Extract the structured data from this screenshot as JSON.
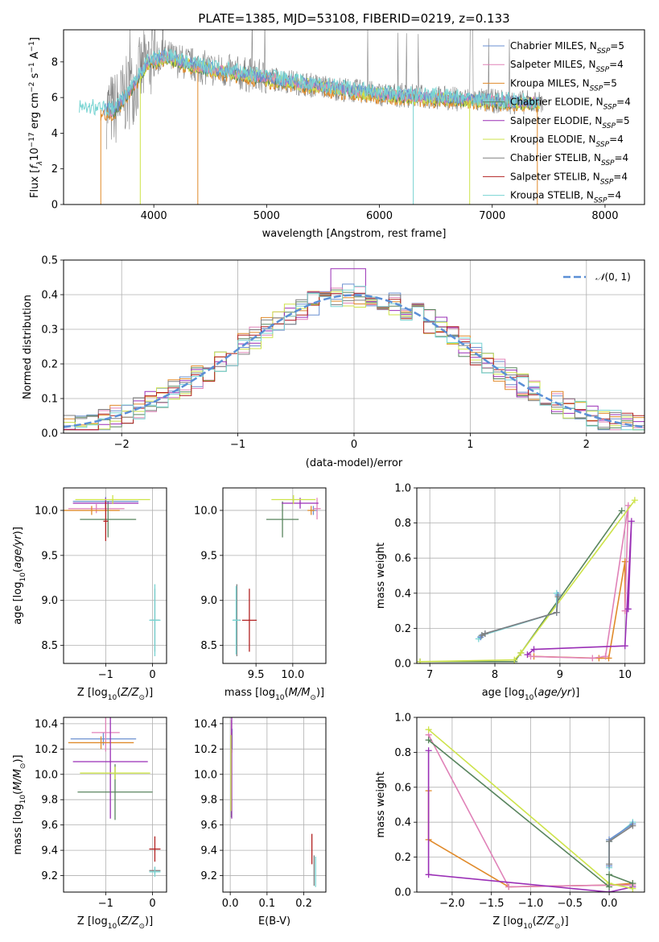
{
  "colors": {
    "chabrier_miles": "#6a8fd0",
    "salpeter_miles": "#e082b8",
    "kroupa_miles": "#e08a2a",
    "chabrier_elodie": "#59855e",
    "salpeter_elodie": "#9a2fb6",
    "kroupa_elodie": "#cde34a",
    "chabrier_stelib": "#808080",
    "salpeter_stelib": "#b22222",
    "kroupa_stelib": "#78d4d2"
  },
  "chart_data": [
    {
      "id": "spectrum",
      "type": "line",
      "title": "PLATE=1385, MJD=53108, FIBERID=0219, z=0.133",
      "xlabel": "wavelength [Angstrom, rest frame]",
      "ylabel": "Flux [f_λ10^-17 erg cm^-2 s^-1 A^-1]",
      "xlim": [
        3200,
        8350
      ],
      "ylim": [
        0,
        9.8
      ],
      "xticks": [
        4000,
        5000,
        6000,
        7000,
        8000
      ],
      "yticks": [
        0,
        2,
        4,
        6,
        8
      ],
      "legend_position": "top-right",
      "legend": [
        {
          "label": "Chabrier MILES, N_SSP=5",
          "color": "#6a8fd0"
        },
        {
          "label": "Salpeter MILES, N_SSP=4",
          "color": "#e082b8"
        },
        {
          "label": "Kroupa MILES, N_SSP=5",
          "color": "#e08a2a"
        },
        {
          "label": "Chabrier ELODIE, N_SSP=4",
          "color": "#59855e"
        },
        {
          "label": "Salpeter ELODIE, N_SSP=5",
          "color": "#9a2fb6"
        },
        {
          "label": "Kroupa ELODIE, N_SSP=4",
          "color": "#cde34a"
        },
        {
          "label": "Chabrier STELIB, N_SSP=4",
          "color": "#808080"
        },
        {
          "label": "Salpeter STELIB, N_SSP=4",
          "color": "#b22222"
        },
        {
          "label": "Kroupa STELIB, N_SSP=4",
          "color": "#78d4d2"
        }
      ],
      "model_continuum": {
        "x": [
          3340,
          3450,
          3550,
          3650,
          3800,
          3950,
          4100,
          4300,
          4500,
          4800,
          5100,
          5500,
          6000,
          6500,
          7000,
          7400
        ],
        "y": [
          5.5,
          5.4,
          5.3,
          5.3,
          6.5,
          8.0,
          8.3,
          7.9,
          7.6,
          7.3,
          7.0,
          6.6,
          6.2,
          6.0,
          5.8,
          5.7
        ]
      },
      "observed_range": [
        3580,
        7450
      ]
    },
    {
      "id": "residuals",
      "type": "line",
      "xlabel": "(data-model)/error",
      "ylabel": "Normed distribution",
      "xlim": [
        -2.5,
        2.5
      ],
      "ylim": [
        0,
        0.5
      ],
      "xticks": [
        -2,
        -1,
        0,
        1,
        2
      ],
      "yticks": [
        0.0,
        0.1,
        0.2,
        0.3,
        0.4,
        0.5
      ],
      "grid": true,
      "legend_position": "top-right",
      "gaussian_label": "𝒩(0, 1)",
      "gaussian_color": "#5b8fd6",
      "bin_width": 0.1
    },
    {
      "id": "z-age",
      "type": "scatter",
      "xlabel": "Z [log10(Z/Z⊙)]",
      "ylabel": "age  [log10(age/yr)]",
      "xlim": [
        -1.9,
        0.3
      ],
      "ylim": [
        8.3,
        10.25
      ],
      "xticks": [
        -1,
        0
      ],
      "yticks": [
        8.5,
        9.0,
        9.5,
        10.0
      ],
      "points": [
        {
          "x": -1.0,
          "y": 10.1,
          "xerr": 0.7,
          "yerr": 0.05,
          "color": "#6a8fd0"
        },
        {
          "x": -1.2,
          "y": 10.02,
          "xerr": 0.6,
          "yerr": 0.05,
          "color": "#e082b8"
        },
        {
          "x": -1.3,
          "y": 10.0,
          "xerr": 0.6,
          "yerr": 0.05,
          "color": "#e08a2a"
        },
        {
          "x": -0.95,
          "y": 9.9,
          "xerr": 0.6,
          "yerr": 0.2,
          "color": "#59855e"
        },
        {
          "x": -1.0,
          "y": 10.08,
          "xerr": 0.7,
          "yerr": 0.06,
          "color": "#9a2fb6"
        },
        {
          "x": -0.85,
          "y": 10.12,
          "xerr": 0.8,
          "yerr": 0.05,
          "color": "#cde34a"
        },
        {
          "x": 0.05,
          "y": 8.78,
          "xerr": 0.1,
          "yerr": 0.35,
          "color": "#808080"
        },
        {
          "x": -1.0,
          "y": 9.88,
          "xerr": 0.05,
          "yerr": 0.22,
          "color": "#b22222"
        },
        {
          "x": 0.05,
          "y": 8.78,
          "xerr": 0.12,
          "yerr": 0.4,
          "color": "#78d4d2"
        }
      ]
    },
    {
      "id": "mass-age",
      "type": "scatter",
      "xlabel": "mass [log10(M/M⊙)]",
      "ylabel": "",
      "xlim": [
        9.05,
        10.45
      ],
      "ylim": [
        8.3,
        10.25
      ],
      "xticks": [
        9.5,
        10.0
      ],
      "yticks": [
        8.5,
        9.0,
        9.5,
        10.0
      ],
      "points": [
        {
          "x": 10.28,
          "y": 10.0,
          "xerr": 0.05,
          "yerr": 0.05,
          "color": "#6a8fd0"
        },
        {
          "x": 10.33,
          "y": 10.02,
          "xerr": 0.05,
          "yerr": 0.12,
          "color": "#e082b8"
        },
        {
          "x": 10.25,
          "y": 10.0,
          "xerr": 0.05,
          "yerr": 0.05,
          "color": "#e08a2a"
        },
        {
          "x": 9.86,
          "y": 9.9,
          "xerr": 0.22,
          "yerr": 0.2,
          "color": "#59855e"
        },
        {
          "x": 10.1,
          "y": 10.08,
          "xerr": 0.25,
          "yerr": 0.06,
          "color": "#9a2fb6"
        },
        {
          "x": 10.01,
          "y": 10.12,
          "xerr": 0.3,
          "yerr": 0.05,
          "color": "#cde34a"
        },
        {
          "x": 9.24,
          "y": 8.78,
          "xerr": 0.05,
          "yerr": 0.4,
          "color": "#808080"
        },
        {
          "x": 9.41,
          "y": 8.78,
          "xerr": 0.1,
          "yerr": 0.35,
          "color": "#b22222"
        },
        {
          "x": 9.23,
          "y": 8.78,
          "xerr": 0.05,
          "yerr": 0.38,
          "color": "#78d4d2"
        }
      ]
    },
    {
      "id": "age-weight",
      "type": "line",
      "xlabel": "age  [log10(age/yr)]",
      "ylabel": "mass weight",
      "xlim": [
        6.8,
        10.3
      ],
      "ylim": [
        0,
        1.0
      ],
      "xticks": [
        7,
        8,
        9,
        10
      ],
      "yticks": [
        0.0,
        0.2,
        0.4,
        0.6,
        0.8,
        1.0
      ],
      "grid": true,
      "series": [
        {
          "color": "#e08a2a",
          "x": [
            8.6,
            9.6,
            9.75,
            10.0,
            10.0
          ],
          "y": [
            0.04,
            0.03,
            0.03,
            0.58,
            0.3
          ]
        },
        {
          "color": "#e082b8",
          "x": [
            8.55,
            9.5,
            9.7,
            10.05,
            10.0
          ],
          "y": [
            0.04,
            0.03,
            0.04,
            0.9,
            0.3
          ]
        },
        {
          "color": "#9a2fb6",
          "x": [
            8.5,
            8.6,
            10.0,
            10.1,
            10.05
          ],
          "y": [
            0.05,
            0.08,
            0.1,
            0.81,
            0.31
          ]
        },
        {
          "color": "#59855e",
          "x": [
            6.85,
            8.3,
            8.4,
            9.95
          ],
          "y": [
            0.01,
            0.01,
            0.06,
            0.87
          ]
        },
        {
          "color": "#cde34a",
          "x": [
            6.85,
            8.3,
            8.4,
            10.15
          ],
          "y": [
            0.01,
            0.02,
            0.06,
            0.93
          ]
        },
        {
          "color": "#78d4d2",
          "x": [
            7.75,
            7.8,
            8.95,
            8.95
          ],
          "y": [
            0.14,
            0.16,
            0.29,
            0.4
          ]
        },
        {
          "color": "#6a8fd0",
          "x": [
            7.78,
            7.85,
            8.95,
            8.97
          ],
          "y": [
            0.15,
            0.17,
            0.29,
            0.39
          ]
        },
        {
          "color": "#808080",
          "x": [
            7.8,
            7.85,
            8.95,
            8.97
          ],
          "y": [
            0.16,
            0.17,
            0.29,
            0.38
          ]
        }
      ]
    },
    {
      "id": "z-mass",
      "type": "scatter",
      "xlabel": "Z [log10(Z/Z⊙)]",
      "ylabel": "mass [log10(M/M⊙)]",
      "xlim": [
        -1.9,
        0.3
      ],
      "ylim": [
        9.07,
        10.45
      ],
      "xticks": [
        -1,
        0
      ],
      "yticks": [
        9.2,
        9.4,
        9.6,
        9.8,
        10.0,
        10.2,
        10.4
      ],
      "points": [
        {
          "x": -1.05,
          "y": 10.28,
          "xerr": 0.7,
          "yerr": 0.05,
          "color": "#6a8fd0"
        },
        {
          "x": -1.0,
          "y": 10.33,
          "xerr": 0.3,
          "yerr": 0.15,
          "color": "#e082b8"
        },
        {
          "x": -1.1,
          "y": 10.25,
          "xerr": 0.7,
          "yerr": 0.05,
          "color": "#e08a2a"
        },
        {
          "x": -0.8,
          "y": 9.86,
          "xerr": 0.8,
          "yerr": 0.22,
          "color": "#59855e"
        },
        {
          "x": -0.9,
          "y": 10.1,
          "xerr": 0.8,
          "yerr": 0.45,
          "color": "#9a2fb6"
        },
        {
          "x": -0.8,
          "y": 10.01,
          "xerr": 0.75,
          "yerr": 0.05,
          "color": "#cde34a"
        },
        {
          "x": 0.05,
          "y": 9.24,
          "xerr": 0.12,
          "yerr": 0.03,
          "color": "#808080"
        },
        {
          "x": 0.05,
          "y": 9.41,
          "xerr": 0.12,
          "yerr": 0.1,
          "color": "#b22222"
        },
        {
          "x": 0.05,
          "y": 9.23,
          "xerr": 0.12,
          "yerr": 0.04,
          "color": "#78d4d2"
        }
      ]
    },
    {
      "id": "ebv-mass",
      "type": "scatter",
      "xlabel": "E(B-V)",
      "ylabel": "",
      "xlim": [
        -0.02,
        0.26
      ],
      "ylim": [
        9.07,
        10.45
      ],
      "xticks": [
        0.0,
        0.1,
        0.2
      ],
      "yticks": [
        9.2,
        9.4,
        9.6,
        9.8,
        10.0,
        10.2,
        10.4
      ],
      "points": [
        {
          "x": 0.005,
          "y": 10.28,
          "yerr": 0.08,
          "color": "#6a8fd0"
        },
        {
          "x": 0.003,
          "y": 10.33,
          "yerr": 0.1,
          "color": "#e082b8"
        },
        {
          "x": 0.004,
          "y": 10.25,
          "yerr": 0.08,
          "color": "#e08a2a"
        },
        {
          "x": 0.003,
          "y": 9.86,
          "yerr": 0.2,
          "color": "#59855e"
        },
        {
          "x": 0.004,
          "y": 10.1,
          "yerr": 0.45,
          "color": "#9a2fb6"
        },
        {
          "x": 0.002,
          "y": 10.01,
          "yerr": 0.3,
          "color": "#cde34a"
        },
        {
          "x": 0.228,
          "y": 9.24,
          "yerr": 0.12,
          "color": "#808080"
        },
        {
          "x": 0.222,
          "y": 9.41,
          "yerr": 0.12,
          "color": "#b22222"
        },
        {
          "x": 0.232,
          "y": 9.23,
          "yerr": 0.12,
          "color": "#78d4d2"
        }
      ]
    },
    {
      "id": "z-weight",
      "type": "line",
      "xlabel": "Z [log10(Z/Z⊙)]",
      "ylabel": "mass weight",
      "xlim": [
        -2.45,
        0.45
      ],
      "ylim": [
        0,
        1.0
      ],
      "xticks": [
        -2.0,
        -1.5,
        -1.0,
        -0.5,
        0.0
      ],
      "yticks": [
        0.0,
        0.2,
        0.4,
        0.6,
        0.8,
        1.0
      ],
      "grid": true,
      "series": [
        {
          "color": "#e08a2a",
          "x": [
            -2.3,
            -2.3,
            -1.28,
            0.0,
            0.3
          ],
          "y": [
            0.58,
            0.3,
            0.03,
            0.04,
            0.05
          ]
        },
        {
          "color": "#e082b8",
          "x": [
            -2.3,
            -1.28,
            0.0,
            0.3
          ],
          "y": [
            0.9,
            0.03,
            0.04,
            0.04
          ]
        },
        {
          "color": "#9a2fb6",
          "x": [
            -2.3,
            -2.3,
            0.0,
            0.3
          ],
          "y": [
            0.81,
            0.1,
            0.0,
            0.03
          ]
        },
        {
          "color": "#cde34a",
          "x": [
            -2.3,
            0.0,
            0.3
          ],
          "y": [
            0.93,
            0.05,
            0.02
          ]
        },
        {
          "color": "#59855e",
          "x": [
            -2.3,
            0.0,
            0.0,
            0.3
          ],
          "y": [
            0.87,
            0.03,
            0.1,
            0.05
          ]
        },
        {
          "color": "#78d4d2",
          "x": [
            0.0,
            0.0,
            0.3
          ],
          "y": [
            0.14,
            0.29,
            0.4
          ]
        },
        {
          "color": "#6a8fd0",
          "x": [
            0.0,
            0.0,
            0.3
          ],
          "y": [
            0.15,
            0.3,
            0.39
          ]
        },
        {
          "color": "#808080",
          "x": [
            0.0,
            0.0,
            0.3
          ],
          "y": [
            0.16,
            0.29,
            0.38
          ]
        }
      ]
    }
  ]
}
